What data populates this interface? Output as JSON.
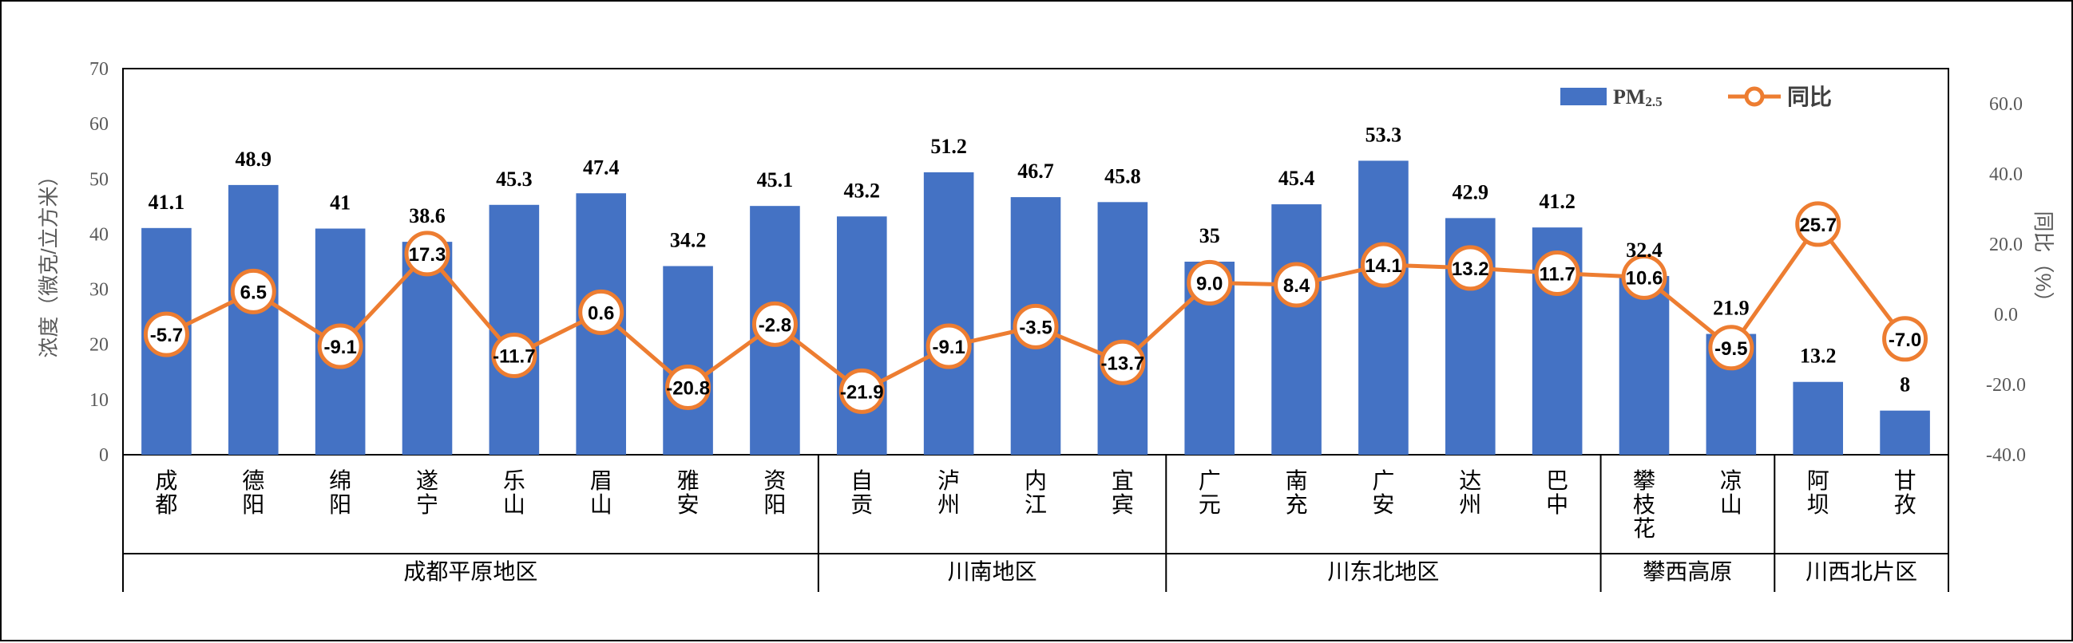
{
  "chart_data": {
    "type": "bar",
    "ylabel": "浓度（微克/立方米）",
    "y2label": "同比（%）",
    "ylim": [
      0,
      70
    ],
    "y2lim": [
      -40,
      70
    ],
    "yticks": [
      "0",
      "10",
      "20",
      "30",
      "40",
      "50",
      "60",
      "70"
    ],
    "y2ticks": [
      "-40.0",
      "-20.0",
      "0.0",
      "20.0",
      "40.0",
      "60.0"
    ],
    "categories": [
      "成都",
      "德阳",
      "绵阳",
      "遂宁",
      "乐山",
      "眉山",
      "雅安",
      "资阳",
      "自贡",
      "泸州",
      "内江",
      "宜宾",
      "广元",
      "南充",
      "广安",
      "达州",
      "巴中",
      "攀枝花",
      "凉山",
      "阿坝",
      "甘孜"
    ],
    "bar_labels": [
      "41.1",
      "48.9",
      "41",
      "38.6",
      "45.3",
      "47.4",
      "34.2",
      "45.1",
      "43.2",
      "51.2",
      "46.7",
      "45.8",
      "35",
      "45.4",
      "53.3",
      "42.9",
      "41.2",
      "32.4",
      "21.9",
      "13.2",
      "8"
    ],
    "line_labels": [
      "-5.7",
      "6.5",
      "-9.1",
      "17.3",
      "-11.7",
      "0.6",
      "-20.8",
      "-2.8",
      "-21.9",
      "-9.1",
      "-3.5",
      "-13.7",
      "9.0",
      "8.4",
      "14.1",
      "13.2",
      "11.7",
      "10.6",
      "-9.5",
      "25.7",
      "-7.0"
    ],
    "series": [
      {
        "name": "PM2.5",
        "axis": "left",
        "type": "bar",
        "values": [
          41.1,
          48.9,
          41,
          38.6,
          45.3,
          47.4,
          34.2,
          45.1,
          43.2,
          51.2,
          46.7,
          45.8,
          35,
          45.4,
          53.3,
          42.9,
          41.2,
          32.4,
          21.9,
          13.2,
          8
        ]
      },
      {
        "name": "同比",
        "axis": "right",
        "type": "line",
        "values": [
          -5.7,
          6.5,
          -9.1,
          17.3,
          -11.7,
          0.6,
          -20.8,
          -2.8,
          -21.9,
          -9.1,
          -3.5,
          -13.7,
          9.0,
          8.4,
          14.1,
          13.2,
          11.7,
          10.6,
          -9.5,
          25.7,
          -7.0
        ]
      }
    ],
    "groups": [
      {
        "name": "成都平原地区",
        "count": 8
      },
      {
        "name": "川南地区",
        "count": 4
      },
      {
        "name": "川东北地区",
        "count": 5
      },
      {
        "name": "攀西高原",
        "count": 2
      },
      {
        "name": "川西北片区",
        "count": 2
      }
    ],
    "legend": {
      "position": "top-right",
      "bar_label": "PM",
      "bar_label_sub": "2.5",
      "line_label": "同比"
    },
    "colors": {
      "bar": "#4472C4",
      "line": "#ED7D31",
      "marker_fill": "#ffffff"
    }
  }
}
